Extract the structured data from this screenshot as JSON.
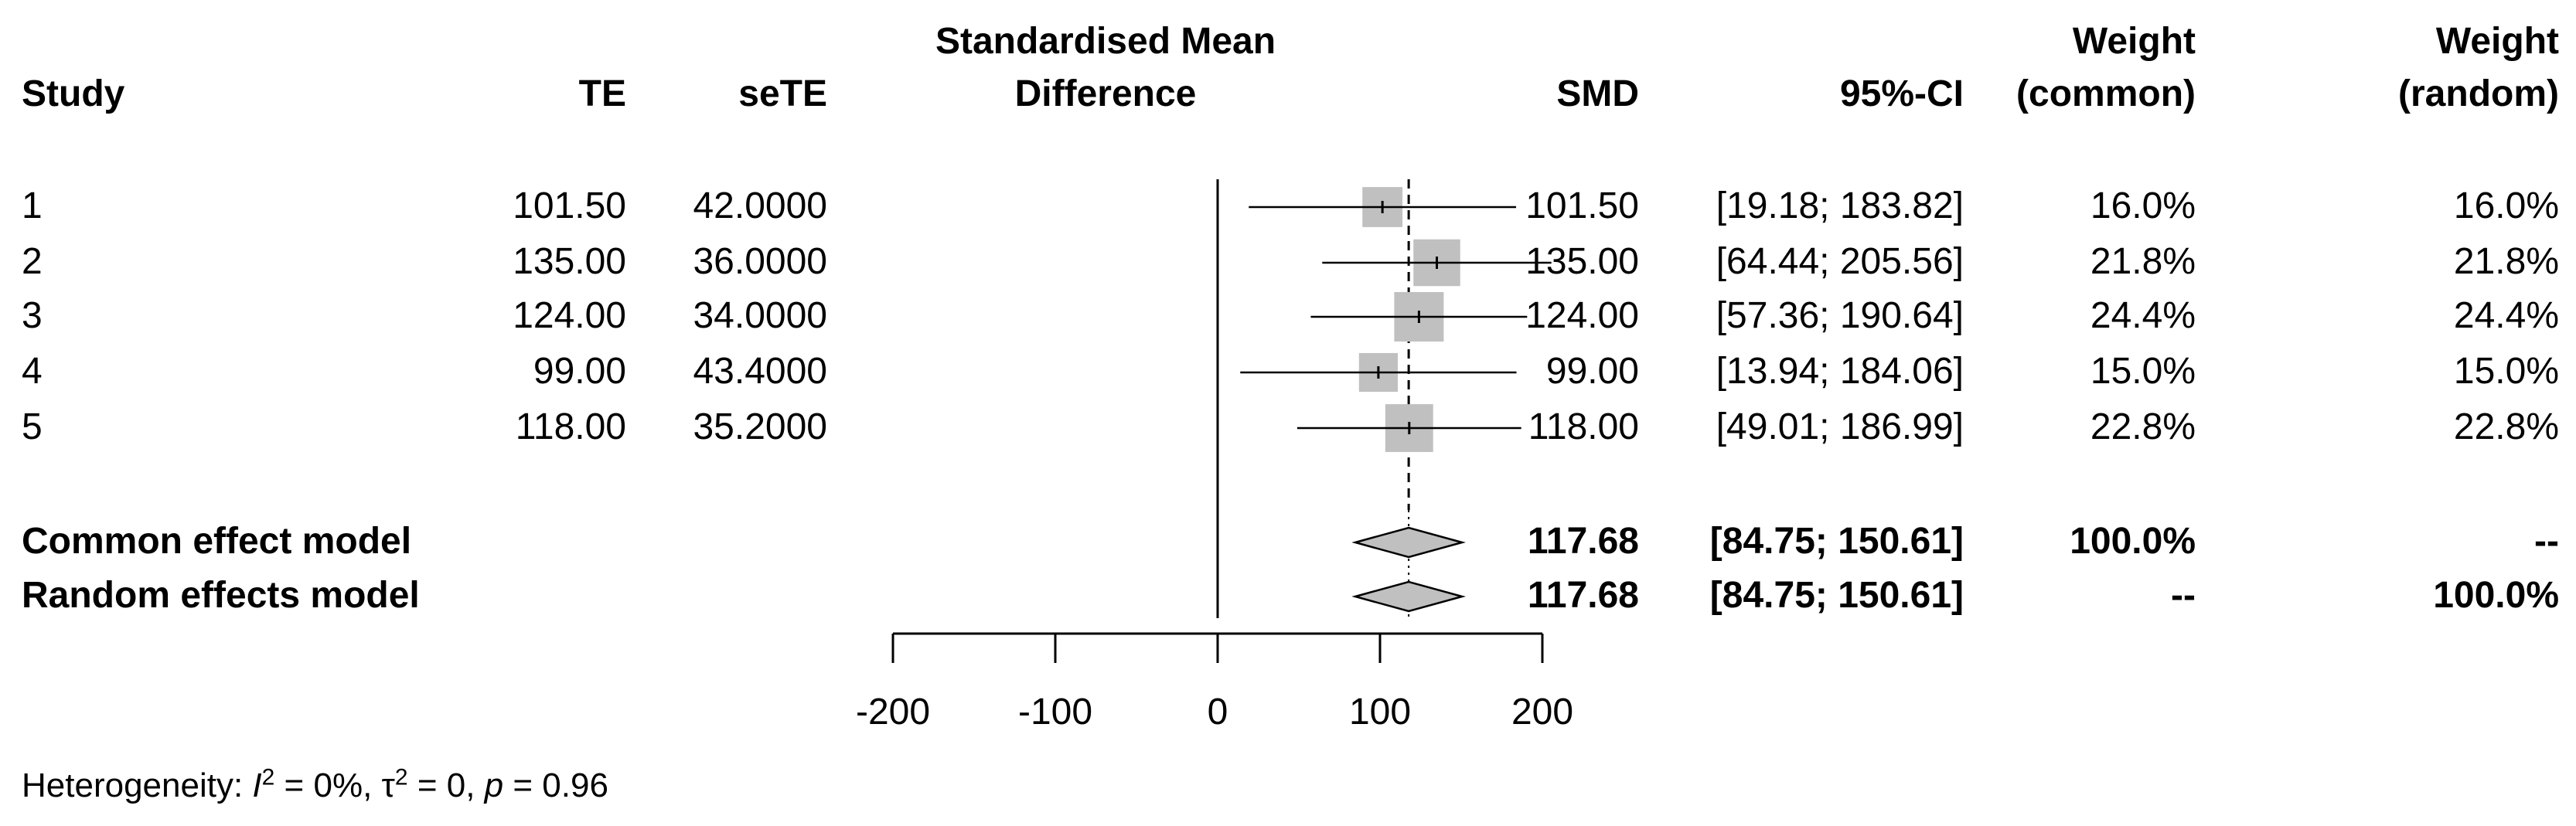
{
  "chart_data": {
    "type": "forest",
    "title": "Standardised Mean Difference",
    "headers": {
      "study": "Study",
      "te": "TE",
      "sete": "seTE",
      "plot_line1": "Standardised Mean",
      "plot_line2": "Difference",
      "smd": "SMD",
      "ci": "95%-CI",
      "w_common_line1": "Weight",
      "w_common_line2": "(common)",
      "w_random_line1": "Weight",
      "w_random_line2": "(random)"
    },
    "studies": [
      {
        "label": "1",
        "te": "101.50",
        "sete": "42.0000",
        "smd": "101.50",
        "ci": "[19.18; 183.82]",
        "w_common": "16.0%",
        "w_random": "16.0%",
        "est": 101.5,
        "lo": 19.18,
        "hi": 183.82,
        "weight": 16.0
      },
      {
        "label": "2",
        "te": "135.00",
        "sete": "36.0000",
        "smd": "135.00",
        "ci": "[64.44; 205.56]",
        "w_common": "21.8%",
        "w_random": "21.8%",
        "est": 135.0,
        "lo": 64.44,
        "hi": 205.56,
        "weight": 21.8
      },
      {
        "label": "3",
        "te": "124.00",
        "sete": "34.0000",
        "smd": "124.00",
        "ci": "[57.36; 190.64]",
        "w_common": "24.4%",
        "w_random": "24.4%",
        "est": 124.0,
        "lo": 57.36,
        "hi": 190.64,
        "weight": 24.4
      },
      {
        "label": "4",
        "te": "99.00",
        "sete": "43.4000",
        "smd": "99.00",
        "ci": "[13.94; 184.06]",
        "w_common": "15.0%",
        "w_random": "15.0%",
        "est": 99.0,
        "lo": 13.94,
        "hi": 184.06,
        "weight": 15.0
      },
      {
        "label": "5",
        "te": "118.00",
        "sete": "35.2000",
        "smd": "118.00",
        "ci": "[49.01; 186.99]",
        "w_common": "22.8%",
        "w_random": "22.8%",
        "est": 118.0,
        "lo": 49.01,
        "hi": 186.99,
        "weight": 22.8
      }
    ],
    "models": [
      {
        "label": "Common effect model",
        "smd": "117.68",
        "ci": "[84.75; 150.61]",
        "w_common": "100.0%",
        "w_random": "--",
        "est": 117.68,
        "lo": 84.75,
        "hi": 150.61
      },
      {
        "label": "Random effects model",
        "smd": "117.68",
        "ci": "[84.75; 150.61]",
        "w_common": "--",
        "w_random": "100.0%",
        "est": 117.68,
        "lo": 84.75,
        "hi": 150.61
      }
    ],
    "xaxis": {
      "ticks": [
        -200,
        -100,
        0,
        100,
        200
      ],
      "tick_labels": [
        "-200",
        "-100",
        "0",
        "100",
        "200"
      ],
      "range": [
        -200,
        200
      ]
    },
    "reference_line": 0,
    "pooled_line": 117.68,
    "heterogeneity": {
      "prefix": "Heterogeneity: ",
      "i2_symbol": "I",
      "i2_sup": "2",
      "i2_value": " = 0%, ",
      "tau_symbol": "τ",
      "tau_sup": "2",
      "tau_value": " = 0, ",
      "p_symbol": "p",
      "p_value": " = 0.96"
    },
    "colors": {
      "square": "#c0c0c0",
      "diamond": "#c0c0c0",
      "line": "#000000"
    }
  }
}
